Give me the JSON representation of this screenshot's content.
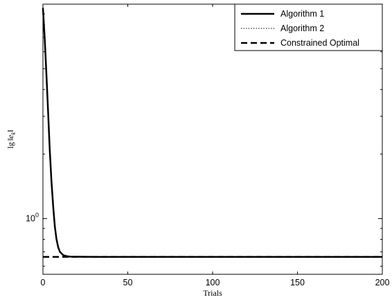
{
  "chart_data": {
    "type": "line",
    "xlabel": "Trials",
    "ylabel_parts": {
      "prefix": "lg",
      "var": "e",
      "sub": "k"
    },
    "y_scale": "log",
    "xlim": [
      0,
      200
    ],
    "ylim": [
      0.55,
      10
    ],
    "x_ticks": [
      0,
      50,
      100,
      150,
      200
    ],
    "y_ticks": [
      {
        "value": 1,
        "base": "10",
        "exp": "0"
      }
    ],
    "grid": false,
    "legend_position": "top-right",
    "series": [
      {
        "name": "Algorithm 1",
        "style": "solid",
        "color": "#000000",
        "points": [
          [
            0,
            9.6
          ],
          [
            1,
            7.0
          ],
          [
            2,
            4.8
          ],
          [
            3,
            3.2
          ],
          [
            4,
            2.1
          ],
          [
            5,
            1.5
          ],
          [
            6,
            1.15
          ],
          [
            7,
            0.92
          ],
          [
            8,
            0.8
          ],
          [
            9,
            0.735
          ],
          [
            10,
            0.7
          ],
          [
            12,
            0.675
          ],
          [
            14,
            0.668
          ],
          [
            16,
            0.665
          ],
          [
            20,
            0.664
          ],
          [
            30,
            0.663
          ],
          [
            50,
            0.663
          ],
          [
            100,
            0.663
          ],
          [
            150,
            0.663
          ],
          [
            200,
            0.663
          ]
        ]
      },
      {
        "name": "Algorithm 2",
        "style": "dotted",
        "color": "#000000",
        "points": [
          [
            0,
            9.6
          ],
          [
            1,
            7.1
          ],
          [
            2,
            4.9
          ],
          [
            3,
            3.3
          ],
          [
            4,
            2.2
          ],
          [
            5,
            1.55
          ],
          [
            6,
            1.18
          ],
          [
            7,
            0.95
          ],
          [
            8,
            0.82
          ],
          [
            9,
            0.745
          ],
          [
            10,
            0.705
          ],
          [
            12,
            0.678
          ],
          [
            14,
            0.669
          ],
          [
            16,
            0.666
          ],
          [
            20,
            0.664
          ],
          [
            30,
            0.663
          ],
          [
            50,
            0.663
          ],
          [
            100,
            0.663
          ],
          [
            150,
            0.663
          ],
          [
            200,
            0.663
          ]
        ]
      },
      {
        "name": "Constrained Optimal",
        "style": "dashed",
        "color": "#000000",
        "points": [
          [
            0,
            0.663
          ],
          [
            200,
            0.663
          ]
        ]
      }
    ]
  }
}
